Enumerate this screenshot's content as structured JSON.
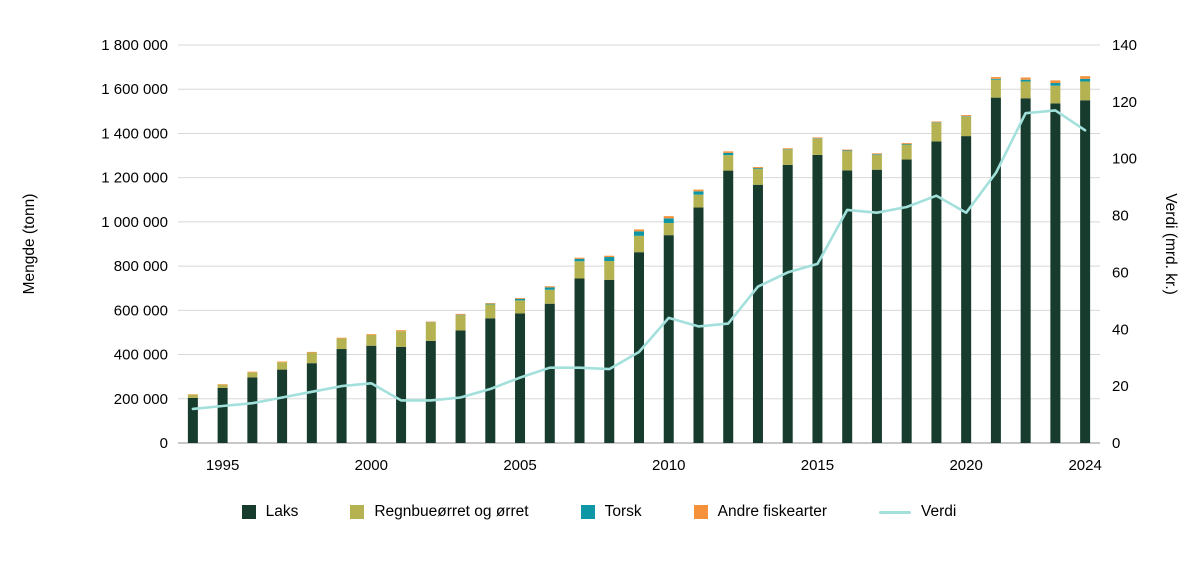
{
  "chart_data": {
    "type": "bar",
    "subtype": "stacked-bars-with-line-overlay",
    "title": "",
    "x": [
      1994,
      1995,
      1996,
      1997,
      1998,
      1999,
      2000,
      2001,
      2002,
      2003,
      2004,
      2005,
      2006,
      2007,
      2008,
      2009,
      2010,
      2011,
      2012,
      2013,
      2014,
      2015,
      2016,
      2017,
      2018,
      2019,
      2020,
      2021,
      2022,
      2023,
      2024
    ],
    "series": [
      {
        "id": "laks",
        "name": "Laks",
        "type": "bar",
        "axis": "left",
        "color": "#173c2d",
        "values": [
          204000,
          249000,
          297000,
          332000,
          361000,
          425000,
          440000,
          435000,
          462000,
          509000,
          564000,
          586000,
          630000,
          744000,
          738000,
          863000,
          940000,
          1065000,
          1232000,
          1168000,
          1258000,
          1303000,
          1233000,
          1236000,
          1282000,
          1364000,
          1388000,
          1562000,
          1559000,
          1536000,
          1550000
        ]
      },
      {
        "id": "orret",
        "name": "Regnbueørret og ørret",
        "type": "bar",
        "axis": "left",
        "color": "#b5b351",
        "values": [
          14500,
          14700,
          22500,
          33000,
          48000,
          48000,
          49000,
          71000,
          83000,
          69000,
          63000,
          59000,
          63000,
          78000,
          85000,
          74000,
          55000,
          58000,
          70000,
          71000,
          69000,
          73000,
          87000,
          67000,
          68000,
          84000,
          88000,
          81000,
          76000,
          80000,
          85000
        ]
      },
      {
        "id": "torsk",
        "name": "Torsk",
        "type": "bar",
        "axis": "left",
        "color": "#0d96a5",
        "values": [
          0,
          0,
          0,
          0,
          0,
          0,
          0,
          0,
          1000,
          2000,
          3000,
          7000,
          11000,
          11000,
          18000,
          20000,
          21000,
          15000,
          10000,
          4000,
          2000,
          2000,
          3000,
          3000,
          3000,
          2000,
          2000,
          4000,
          8000,
          12000,
          12000
        ]
      },
      {
        "id": "andre",
        "name": "Andre fiskearter",
        "type": "bar",
        "axis": "left",
        "color": "#f5913b",
        "values": [
          2000,
          2500,
          3000,
          3500,
          3000,
          3000,
          3500,
          4000,
          3000,
          4000,
          3000,
          4000,
          5000,
          5000,
          6000,
          9000,
          10000,
          8000,
          7000,
          5000,
          4000,
          4000,
          4000,
          4000,
          4000,
          4000,
          5000,
          8000,
          10000,
          12000,
          12000
        ]
      },
      {
        "id": "verdi",
        "name": "Verdi",
        "type": "line",
        "axis": "right",
        "color": "#a3e0dc",
        "values": [
          12,
          13,
          14,
          16,
          18,
          20,
          21,
          15,
          15,
          16,
          19,
          23,
          26.5,
          26.5,
          26,
          32,
          44,
          41,
          42,
          55,
          60,
          63,
          82,
          81,
          83,
          87,
          81,
          95,
          116,
          117,
          110
        ]
      }
    ],
    "left_axis": {
      "label": "Mengde (tonn)",
      "min": 0,
      "max": 1800000,
      "tick_step": 200000,
      "tick_format": "space-thousands"
    },
    "right_axis": {
      "label": "Verdi (mrd. kr.)",
      "min": 0,
      "max": 140,
      "tick_step": 20
    },
    "x_tick_labels": [
      1995,
      2000,
      2005,
      2010,
      2015,
      2020,
      2024
    ],
    "grid": "horizontal",
    "legend_position": "bottom",
    "colors": {
      "grid": "#d8d8d8",
      "axis": "#8f8f8f",
      "text": "#000000",
      "background": "#ffffff"
    }
  }
}
